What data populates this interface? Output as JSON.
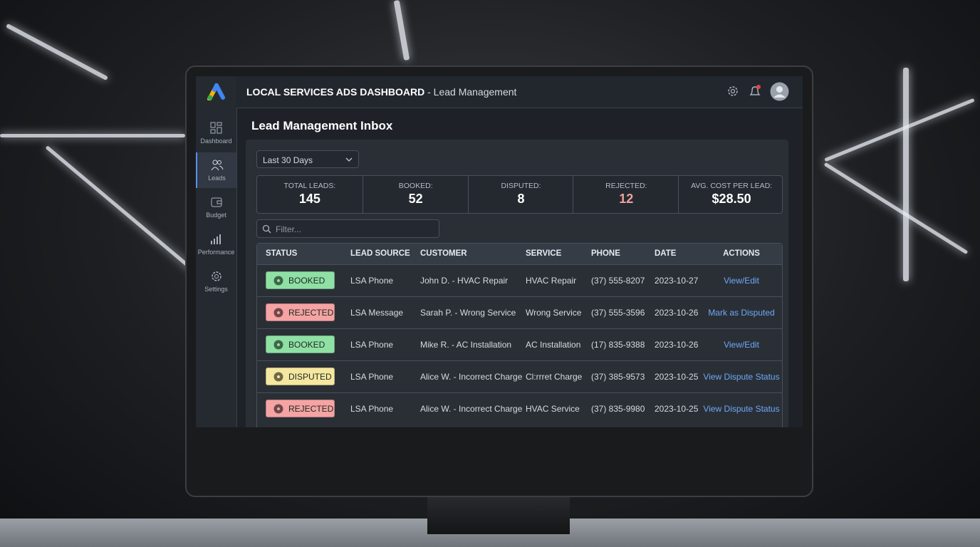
{
  "header": {
    "title": "LOCAL SERVICES ADS DASHBOARD",
    "subtitle": "- Lead Management"
  },
  "nav": [
    {
      "label": "Dashboard"
    },
    {
      "label": "Leads"
    },
    {
      "label": "Budget"
    },
    {
      "label": "Performance"
    },
    {
      "label": "Settings"
    }
  ],
  "inbox": {
    "title": "Lead Management Inbox",
    "range": "Last 30 Days",
    "filter_placeholder": "Filter..."
  },
  "stats": [
    {
      "label": "TOTAL LEADS:",
      "value": "145",
      "color": "#ffffff"
    },
    {
      "label": "BOOKED:",
      "value": "52",
      "color": "#ffffff"
    },
    {
      "label": "DISPUTED:",
      "value": "8",
      "color": "#ffffff"
    },
    {
      "label": "REJECTED:",
      "value": "12",
      "color": "#f0a0a0"
    },
    {
      "label": "AVG. COST PER LEAD:",
      "value": "$28.50",
      "color": "#ffffff"
    }
  ],
  "table": {
    "columns": [
      "STATUS",
      "LEAD SOURCE",
      "CUSTOMER",
      "SERVICE",
      "PHONE",
      "DATE",
      "ACTIONS"
    ],
    "rows": [
      {
        "status": "BOOKED",
        "color": "#8fe0a4",
        "source": "LSA Phone",
        "customer": "John D. - HVAC Repair",
        "service": "HVAC Repair",
        "phone": "(37) 555-8207",
        "date": "2023-10-27",
        "action": "View/Edit"
      },
      {
        "status": "REJECTED",
        "color": "#f5a3a3",
        "source": "LSA Message",
        "customer": "Sarah P. - Wrong Service",
        "service": "Wrong Service",
        "phone": "(37) 555-3596",
        "date": "2023-10-26",
        "action": "Mark as Disputed"
      },
      {
        "status": "BOOKED",
        "color": "#8fe0a4",
        "source": "LSA Phone",
        "customer": "Mike R. - AC Installation",
        "service": "AC Installation",
        "phone": "(17) 835-9388",
        "date": "2023-10-26",
        "action": "View/Edit"
      },
      {
        "status": "DISPUTED",
        "color": "#f6e7a0",
        "source": "LSA Phone",
        "customer": "Alice W. - Incorrect Charge",
        "service": "Cl:rrret Charge",
        "phone": "(37) 385-9573",
        "date": "2023-10-25",
        "action": "View Dispute Status"
      },
      {
        "status": "REJECTED",
        "color": "#f5a3a3",
        "source": "LSA Phone",
        "customer": "Alice W. - Incorrect Charge",
        "service": "HVAC Service",
        "phone": "(37) 835-9980",
        "date": "2023-10-25",
        "action": "View Dispute Status"
      }
    ]
  }
}
